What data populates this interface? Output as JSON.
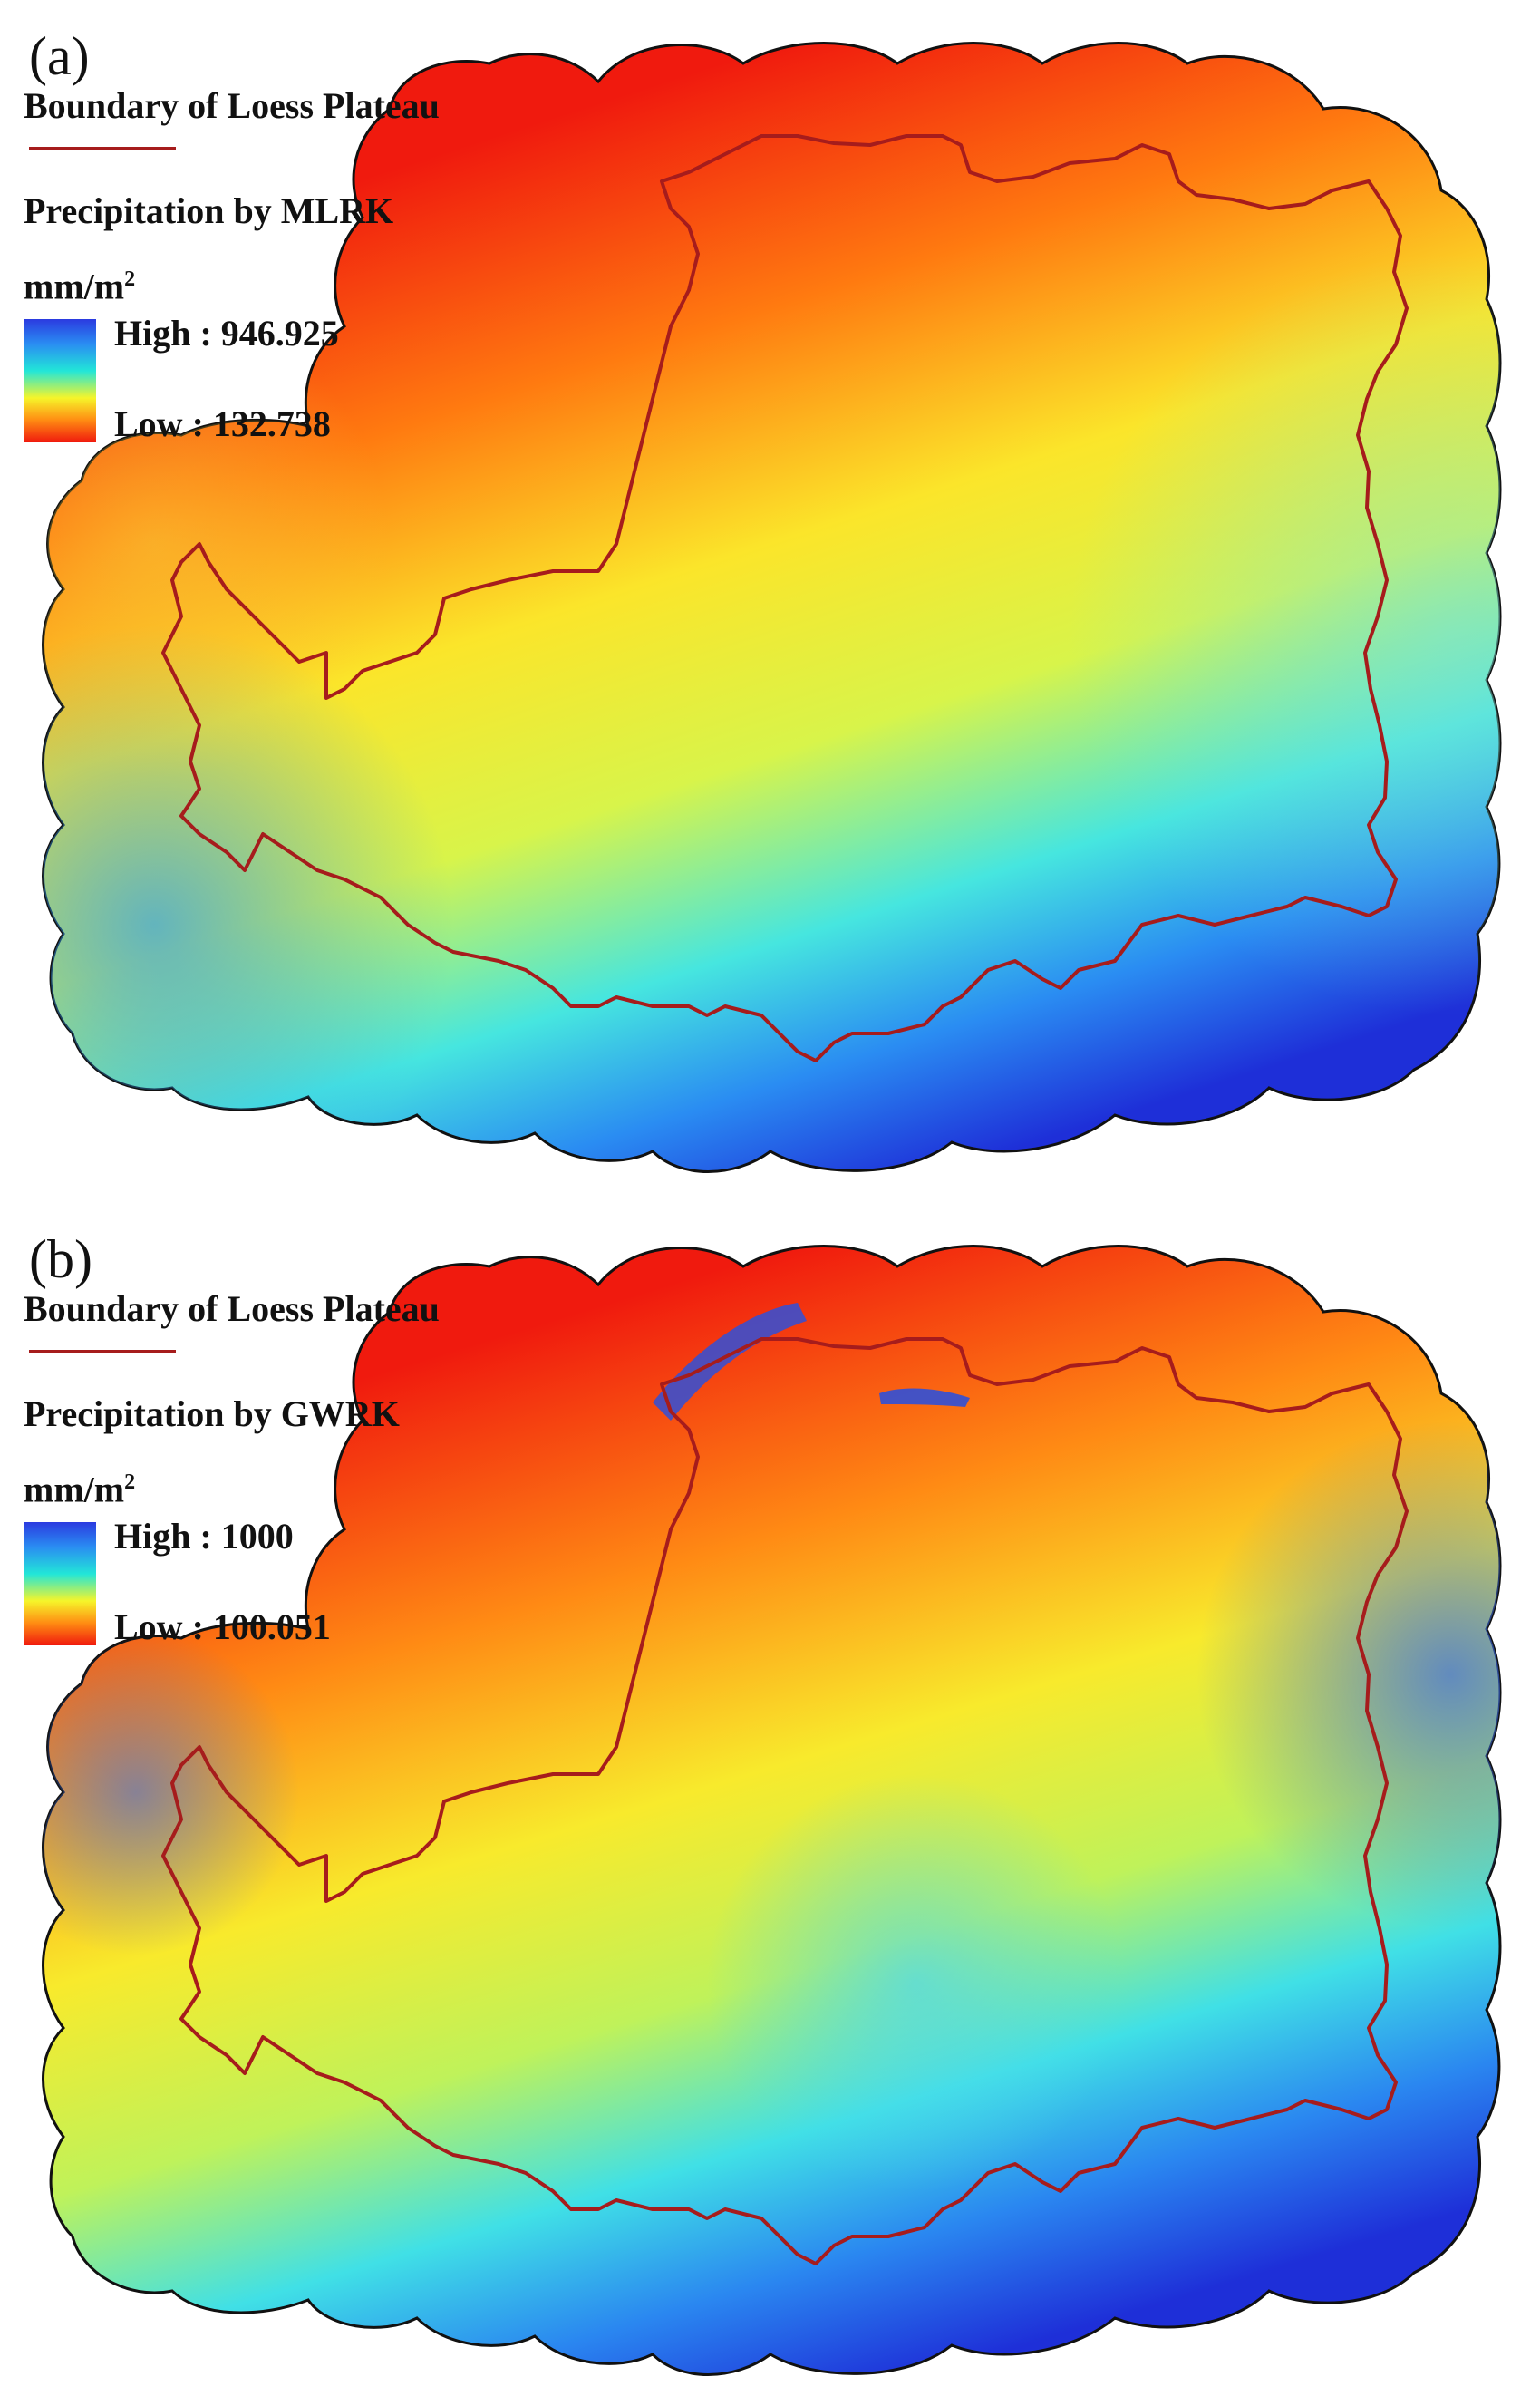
{
  "panels": [
    {
      "label": "(a)",
      "boundary_legend": "Boundary of Loess Plateau",
      "precip_title": "Precipitation by MLRK",
      "unit": "mm/m",
      "unit_sup": "2",
      "high_label": "High : 946.925",
      "low_label": "Low : 132.738"
    },
    {
      "label": "(b)",
      "boundary_legend": "Boundary of Loess Plateau",
      "precip_title": "Precipitation by GWRK",
      "unit": "mm/m",
      "unit_sup": "2",
      "high_label": "High : 1000",
      "low_label": "Low : 100.051"
    }
  ],
  "colors": {
    "boundary": "#a61c1c",
    "high": "#2b3be0",
    "low": "#f01a0e"
  }
}
